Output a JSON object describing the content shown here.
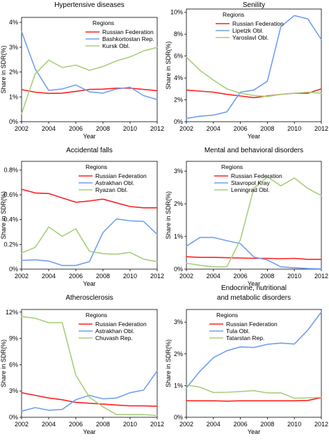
{
  "colors": {
    "red": "#ff1f1f",
    "blue": "#6f9ff0",
    "green": "#a6cf7a"
  },
  "chart_data": [
    {
      "type": "line",
      "title": "Hypertensive diseases",
      "xlabel": "Year",
      "ylabel": "Share in SDR(%)",
      "legend_title": "Regions",
      "legend_position": "top-right",
      "x": [
        2002,
        2003,
        2004,
        2005,
        2006,
        2007,
        2008,
        2009,
        2010,
        2011,
        2012
      ],
      "xlim": [
        2002,
        2012
      ],
      "xticks": [
        2002,
        2004,
        2006,
        2008,
        2010,
        2012
      ],
      "ylim": [
        0,
        4.2
      ],
      "yticks": [
        0,
        1,
        2,
        3,
        4
      ],
      "ytick_labels": [
        "0%",
        "1%",
        "2%",
        "3%",
        "4%"
      ],
      "series": [
        {
          "name": "Russian Federation",
          "color": "red",
          "values": [
            1.29,
            1.19,
            1.14,
            1.15,
            1.22,
            1.3,
            1.31,
            1.35,
            1.35,
            1.3,
            1.25
          ]
        },
        {
          "name": "Bashkortostan Rep.",
          "color": "blue",
          "values": [
            3.63,
            2.13,
            1.26,
            1.32,
            1.48,
            1.2,
            1.15,
            1.32,
            1.39,
            1.05,
            0.89
          ]
        },
        {
          "name": "Kursk Obl.",
          "color": "green",
          "values": [
            0.32,
            1.92,
            2.48,
            2.18,
            2.28,
            2.07,
            2.22,
            2.45,
            2.61,
            2.85,
            2.99
          ]
        }
      ]
    },
    {
      "type": "line",
      "title": "Senility",
      "xlabel": "Year",
      "ylabel": "Share in SDR(%)",
      "legend_title": "Regions",
      "legend_position": "top-center",
      "x": [
        2002,
        2003,
        2004,
        2005,
        2006,
        2007,
        2008,
        2009,
        2010,
        2011,
        2012
      ],
      "xlim": [
        2002,
        2012
      ],
      "xticks": [
        2002,
        2004,
        2006,
        2008,
        2010,
        2012
      ],
      "ylim": [
        0,
        10.3
      ],
      "yticks": [
        0,
        2,
        4,
        6,
        8,
        10
      ],
      "ytick_labels": [
        "0%",
        "2%",
        "4%",
        "6%",
        "8%",
        "10%"
      ],
      "series": [
        {
          "name": "Russian Federation",
          "color": "red",
          "values": [
            2.9,
            2.8,
            2.7,
            2.5,
            2.35,
            2.2,
            2.35,
            2.5,
            2.6,
            2.6,
            3.0
          ]
        },
        {
          "name": "Lipetzk Obl.",
          "color": "blue",
          "values": [
            0.3,
            0.5,
            0.6,
            0.9,
            2.7,
            2.9,
            3.7,
            8.7,
            9.7,
            9.4,
            7.5
          ]
        },
        {
          "name": "Yaroslavl Obl.",
          "color": "green",
          "values": [
            5.9,
            4.7,
            3.8,
            3.0,
            2.6,
            2.4,
            2.3,
            2.5,
            2.6,
            2.7,
            2.6
          ]
        }
      ]
    },
    {
      "type": "line",
      "title": "Accidental falls",
      "xlabel": "Year",
      "ylabel": "Share in SDR(%)",
      "legend_title": "Regions",
      "legend_position": "top-center",
      "x": [
        2002,
        2003,
        2004,
        2005,
        2006,
        2007,
        2008,
        2009,
        2010,
        2011,
        2012
      ],
      "xlim": [
        2002,
        2012
      ],
      "xticks": [
        2002,
        2004,
        2006,
        2008,
        2010,
        2012
      ],
      "ylim": [
        0,
        0.87
      ],
      "yticks": [
        0,
        0.2,
        0.4,
        0.6,
        0.8
      ],
      "ytick_labels": [
        "0%",
        "0.2%",
        "0.4%",
        "0.6%",
        "0.8%"
      ],
      "series": [
        {
          "name": "Russian Federation",
          "color": "red",
          "values": [
            0.645,
            0.615,
            0.61,
            0.575,
            0.54,
            0.55,
            0.565,
            0.535,
            0.505,
            0.495,
            0.495
          ]
        },
        {
          "name": "Astrakhan Obl.",
          "color": "blue",
          "values": [
            0.07,
            0.075,
            0.065,
            0.03,
            0.03,
            0.06,
            0.295,
            0.405,
            0.39,
            0.385,
            0.28
          ]
        },
        {
          "name": "Ryazan Obl.",
          "color": "green",
          "values": [
            0.13,
            0.175,
            0.34,
            0.265,
            0.325,
            0.145,
            0.125,
            0.12,
            0.135,
            0.08,
            0.06
          ]
        }
      ]
    },
    {
      "type": "line",
      "title": "Mental and behavioral disorders",
      "xlabel": "Year",
      "ylabel": "Share in SDR(%)",
      "legend_title": "Regions",
      "legend_position": "top-center",
      "x": [
        2002,
        2003,
        2004,
        2005,
        2006,
        2007,
        2008,
        2009,
        2010,
        2011,
        2012
      ],
      "xlim": [
        2002,
        2012
      ],
      "xticks": [
        2002,
        2004,
        2006,
        2008,
        2010,
        2012
      ],
      "ylim": [
        0,
        3.3
      ],
      "yticks": [
        0,
        1,
        2,
        3
      ],
      "ytick_labels": [
        "0%",
        "1%",
        "2%",
        "3%"
      ],
      "series": [
        {
          "name": "Russian Federation",
          "color": "red",
          "values": [
            0.38,
            0.36,
            0.36,
            0.35,
            0.34,
            0.33,
            0.33,
            0.32,
            0.33,
            0.3,
            0.3
          ]
        },
        {
          "name": "Stavropol Kray",
          "color": "blue",
          "values": [
            0.7,
            0.97,
            0.97,
            0.87,
            0.78,
            0.37,
            0.28,
            0.07,
            0.04,
            0.02,
            0.01
          ]
        },
        {
          "name": "Leningrad Obl.",
          "color": "green",
          "values": [
            0.18,
            0.12,
            0.07,
            0.07,
            0.9,
            2.48,
            2.82,
            2.55,
            2.79,
            2.47,
            2.25
          ]
        }
      ]
    },
    {
      "type": "line",
      "title": "Atherosclerosis",
      "xlabel": "Year",
      "ylabel": "Share in SDR(%)",
      "legend_title": "Regions",
      "legend_position": "top-center",
      "x": [
        2002,
        2003,
        2004,
        2005,
        2006,
        2007,
        2008,
        2009,
        2010,
        2011,
        2012
      ],
      "xlim": [
        2002,
        2012
      ],
      "xticks": [
        2002,
        2004,
        2006,
        2008,
        2010,
        2012
      ],
      "ylim": [
        0,
        12.3
      ],
      "yticks": [
        0,
        3,
        6,
        9,
        12
      ],
      "ytick_labels": [
        "0%",
        "3%",
        "6%",
        "9%",
        "12%"
      ],
      "series": [
        {
          "name": "Russian Federation",
          "color": "red",
          "values": [
            2.8,
            2.5,
            2.2,
            2.0,
            1.7,
            1.6,
            1.5,
            1.4,
            1.3,
            1.3,
            1.25
          ]
        },
        {
          "name": "Astrakhan Obl.",
          "color": "blue",
          "values": [
            0.7,
            1.1,
            0.8,
            0.9,
            2.0,
            2.5,
            2.1,
            2.2,
            2.8,
            3.1,
            5.3
          ]
        },
        {
          "name": "Chuvash Rep.",
          "color": "green",
          "values": [
            11.5,
            11.3,
            10.8,
            10.8,
            4.8,
            2.3,
            1.2,
            0.3,
            0.3,
            0.3,
            0.2
          ]
        }
      ]
    },
    {
      "type": "line",
      "title_lines": [
        "Endocrine, nutritional",
        "and metabolic disorders"
      ],
      "xlabel": "Year",
      "ylabel": "Share in SDR(%)",
      "legend_title": "Regions",
      "legend_position": "top-left",
      "x": [
        2002,
        2003,
        2004,
        2005,
        2006,
        2007,
        2008,
        2009,
        2010,
        2011,
        2012
      ],
      "xlim": [
        2002,
        2012
      ],
      "xticks": [
        2002,
        2004,
        2006,
        2008,
        2010,
        2012
      ],
      "ylim": [
        0,
        3.4
      ],
      "yticks": [
        0,
        1,
        2,
        3
      ],
      "ytick_labels": [
        "0%",
        "1%",
        "2%",
        "3%"
      ],
      "series": [
        {
          "name": "Russian Federation",
          "color": "red",
          "values": [
            0.52,
            0.52,
            0.52,
            0.51,
            0.52,
            0.52,
            0.52,
            0.52,
            0.52,
            0.53,
            0.62
          ]
        },
        {
          "name": "Tula Obl.",
          "color": "blue",
          "values": [
            0.93,
            1.45,
            1.88,
            2.1,
            2.22,
            2.2,
            2.3,
            2.34,
            2.31,
            2.75,
            3.32
          ]
        },
        {
          "name": "Tatarstan Rep.",
          "color": "green",
          "values": [
            1.02,
            0.95,
            0.78,
            0.79,
            0.81,
            0.84,
            0.77,
            0.77,
            0.6,
            0.61,
            0.63
          ]
        }
      ]
    }
  ]
}
